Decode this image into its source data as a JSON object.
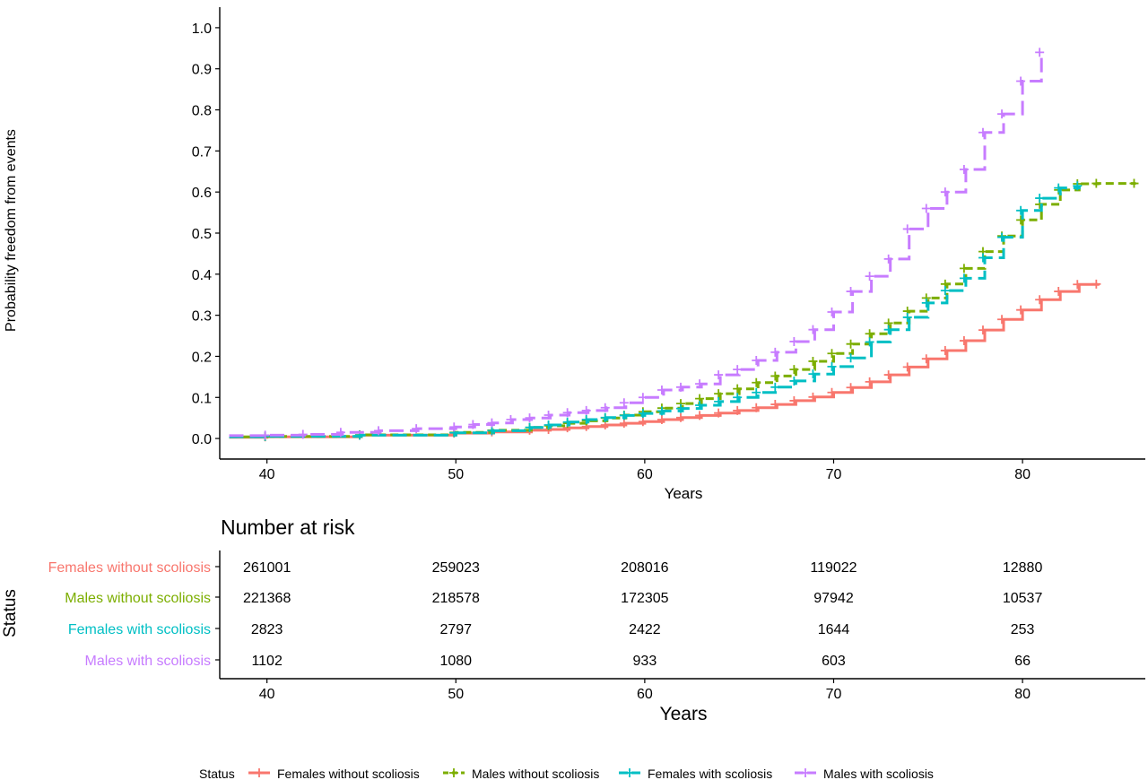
{
  "chart_data": {
    "type": "line",
    "subtype": "step",
    "ylabel": "Probability freedom from events",
    "xlabel": "Years",
    "xlim": [
      37.5,
      86.5
    ],
    "ylim": [
      -0.05,
      1.05
    ],
    "xticks": [
      "40",
      "50",
      "60",
      "70",
      "80"
    ],
    "yticks": [
      "0.0",
      "0.1",
      "0.2",
      "0.3",
      "0.4",
      "0.5",
      "0.6",
      "0.7",
      "0.8",
      "0.9",
      "1.0"
    ],
    "grid": false,
    "series": [
      {
        "name": "Females without scoliosis",
        "color": "#F8766D",
        "linetype": "solid",
        "points": [
          [
            38,
            0.003
          ],
          [
            40,
            0.004
          ],
          [
            45,
            0.008
          ],
          [
            50,
            0.013
          ],
          [
            52,
            0.016
          ],
          [
            54,
            0.02
          ],
          [
            55,
            0.022
          ],
          [
            56,
            0.026
          ],
          [
            57,
            0.029
          ],
          [
            58,
            0.033
          ],
          [
            59,
            0.037
          ],
          [
            60,
            0.041
          ],
          [
            61,
            0.046
          ],
          [
            62,
            0.051
          ],
          [
            63,
            0.056
          ],
          [
            64,
            0.062
          ],
          [
            65,
            0.068
          ],
          [
            66,
            0.075
          ],
          [
            67,
            0.083
          ],
          [
            68,
            0.092
          ],
          [
            69,
            0.101
          ],
          [
            70,
            0.112
          ],
          [
            71,
            0.124
          ],
          [
            72,
            0.138
          ],
          [
            73,
            0.155
          ],
          [
            74,
            0.174
          ],
          [
            75,
            0.194
          ],
          [
            76,
            0.214
          ],
          [
            77,
            0.238
          ],
          [
            78,
            0.264
          ],
          [
            79,
            0.29
          ],
          [
            80,
            0.313
          ],
          [
            81,
            0.338
          ],
          [
            82,
            0.358
          ],
          [
            83,
            0.375
          ],
          [
            84,
            0.376
          ]
        ]
      },
      {
        "name": "Males without scoliosis",
        "color": "#7CAE00",
        "linetype": "dashed",
        "points": [
          [
            38,
            0.004
          ],
          [
            40,
            0.005
          ],
          [
            45,
            0.009
          ],
          [
            50,
            0.015
          ],
          [
            52,
            0.02
          ],
          [
            54,
            0.027
          ],
          [
            55,
            0.031
          ],
          [
            56,
            0.037
          ],
          [
            57,
            0.043
          ],
          [
            58,
            0.05
          ],
          [
            59,
            0.057
          ],
          [
            60,
            0.065
          ],
          [
            61,
            0.074
          ],
          [
            62,
            0.085
          ],
          [
            63,
            0.097
          ],
          [
            64,
            0.109
          ],
          [
            65,
            0.121
          ],
          [
            66,
            0.136
          ],
          [
            67,
            0.152
          ],
          [
            68,
            0.168
          ],
          [
            69,
            0.188
          ],
          [
            70,
            0.207
          ],
          [
            71,
            0.23
          ],
          [
            72,
            0.255
          ],
          [
            73,
            0.281
          ],
          [
            74,
            0.31
          ],
          [
            75,
            0.342
          ],
          [
            76,
            0.376
          ],
          [
            77,
            0.414
          ],
          [
            78,
            0.455
          ],
          [
            79,
            0.493
          ],
          [
            80,
            0.532
          ],
          [
            81,
            0.57
          ],
          [
            82,
            0.605
          ],
          [
            83,
            0.62
          ],
          [
            84,
            0.621
          ],
          [
            86,
            0.621
          ]
        ]
      },
      {
        "name": "Females with scoliosis",
        "color": "#00BFC4",
        "linetype": "longdash",
        "points": [
          [
            38,
            0.004
          ],
          [
            40,
            0.005
          ],
          [
            45,
            0.008
          ],
          [
            50,
            0.014
          ],
          [
            52,
            0.019
          ],
          [
            54,
            0.027
          ],
          [
            55,
            0.033
          ],
          [
            56,
            0.04
          ],
          [
            57,
            0.046
          ],
          [
            58,
            0.051
          ],
          [
            59,
            0.056
          ],
          [
            60,
            0.061
          ],
          [
            61,
            0.067
          ],
          [
            62,
            0.073
          ],
          [
            63,
            0.081
          ],
          [
            64,
            0.09
          ],
          [
            65,
            0.1
          ],
          [
            66,
            0.112
          ],
          [
            67,
            0.125
          ],
          [
            68,
            0.14
          ],
          [
            69,
            0.157
          ],
          [
            70,
            0.175
          ],
          [
            71,
            0.196
          ],
          [
            72,
            0.235
          ],
          [
            73,
            0.265
          ],
          [
            74,
            0.295
          ],
          [
            75,
            0.33
          ],
          [
            76,
            0.36
          ],
          [
            77,
            0.39
          ],
          [
            78,
            0.44
          ],
          [
            79,
            0.49
          ],
          [
            80,
            0.555
          ],
          [
            81,
            0.585
          ],
          [
            82,
            0.61
          ],
          [
            83,
            0.615
          ]
        ]
      },
      {
        "name": "Males with scoliosis",
        "color": "#C77CFF",
        "linetype": "longdash",
        "points": [
          [
            38,
            0.007
          ],
          [
            40,
            0.008
          ],
          [
            42,
            0.01
          ],
          [
            44,
            0.015
          ],
          [
            46,
            0.019
          ],
          [
            48,
            0.024
          ],
          [
            50,
            0.028
          ],
          [
            51,
            0.034
          ],
          [
            52,
            0.038
          ],
          [
            53,
            0.046
          ],
          [
            54,
            0.05
          ],
          [
            55,
            0.057
          ],
          [
            56,
            0.063
          ],
          [
            57,
            0.068
          ],
          [
            58,
            0.075
          ],
          [
            59,
            0.087
          ],
          [
            60,
            0.1
          ],
          [
            61,
            0.118
          ],
          [
            62,
            0.125
          ],
          [
            63,
            0.133
          ],
          [
            64,
            0.155
          ],
          [
            65,
            0.168
          ],
          [
            66,
            0.19
          ],
          [
            67,
            0.21
          ],
          [
            68,
            0.236
          ],
          [
            69,
            0.265
          ],
          [
            70,
            0.308
          ],
          [
            71,
            0.358
          ],
          [
            72,
            0.395
          ],
          [
            73,
            0.437
          ],
          [
            74,
            0.51
          ],
          [
            75,
            0.56
          ],
          [
            76,
            0.6
          ],
          [
            77,
            0.655
          ],
          [
            78,
            0.745
          ],
          [
            79,
            0.79
          ],
          [
            80,
            0.87
          ],
          [
            81,
            0.94
          ]
        ]
      }
    ],
    "risk_table": {
      "title": "Number at risk",
      "ylabel": "Status",
      "xlabel": "Years",
      "times": [
        "40",
        "50",
        "60",
        "70",
        "80"
      ],
      "rows": [
        {
          "label": "Females without scoliosis",
          "color": "#F8766D",
          "values": [
            "261001",
            "259023",
            "208016",
            "119022",
            "12880"
          ]
        },
        {
          "label": "Males without scoliosis",
          "color": "#7CAE00",
          "values": [
            "221368",
            "218578",
            "172305",
            "97942",
            "10537"
          ]
        },
        {
          "label": "Females with scoliosis",
          "color": "#00BFC4",
          "values": [
            "2823",
            "2797",
            "2422",
            "1644",
            "253"
          ]
        },
        {
          "label": "Males with scoliosis",
          "color": "#C77CFF",
          "values": [
            "1102",
            "1080",
            "933",
            "603",
            "66"
          ]
        }
      ]
    },
    "legend": {
      "title": "Status",
      "position": "bottom",
      "items": [
        "Females without scoliosis",
        "Males without scoliosis",
        "Females with scoliosis",
        "Males with scoliosis"
      ]
    }
  }
}
